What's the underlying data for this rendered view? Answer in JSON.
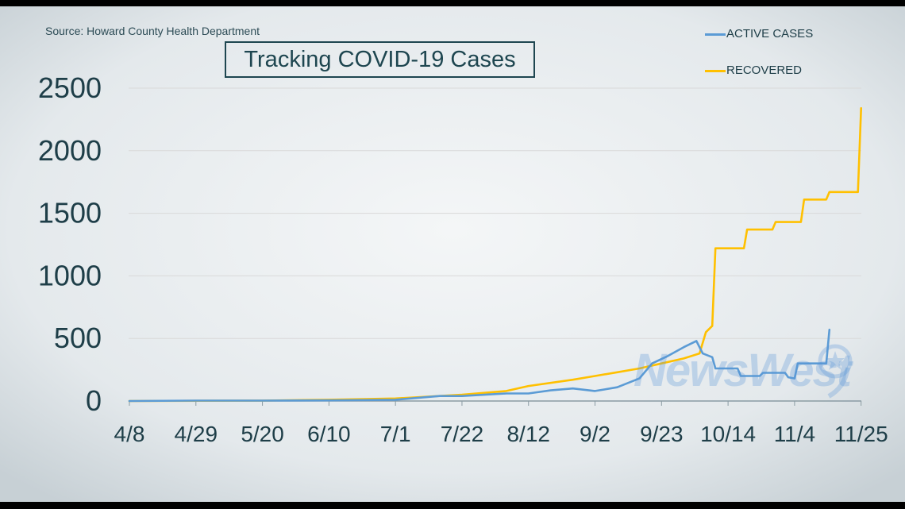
{
  "source": "Source: Howard County Health Department",
  "title": "Tracking COVID-19 Cases",
  "watermark": "NewsWest",
  "colors": {
    "active": "#5b9bd5",
    "recovered": "#ffc000",
    "axis_text": "#1e3e48",
    "grid": "#d9d9d9"
  },
  "chart_data": {
    "type": "line",
    "title": "Tracking COVID-19 Cases",
    "xlabel": "",
    "ylabel": "",
    "ylim": [
      0,
      2500
    ],
    "yticks": [
      0,
      500,
      1000,
      1500,
      2000,
      2500
    ],
    "xticks": [
      "4/8",
      "4/29",
      "5/20",
      "6/10",
      "7/1",
      "7/22",
      "8/12",
      "9/2",
      "9/23",
      "10/14",
      "11/4",
      "11/25"
    ],
    "grid": "horizontal",
    "legend_position": "top-right",
    "series": [
      {
        "name": "ACTIVE CASES",
        "color": "#5b9bd5",
        "points": [
          [
            "4/8",
            0
          ],
          [
            "4/29",
            3
          ],
          [
            "5/20",
            3
          ],
          [
            "6/10",
            5
          ],
          [
            "7/1",
            10
          ],
          [
            "7/15",
            40
          ],
          [
            "7/22",
            40
          ],
          [
            "8/5",
            60
          ],
          [
            "8/12",
            60
          ],
          [
            "8/19",
            85
          ],
          [
            "8/26",
            100
          ],
          [
            "9/2",
            80
          ],
          [
            "9/9",
            110
          ],
          [
            "9/16",
            180
          ],
          [
            "9/20",
            300
          ],
          [
            "9/25",
            360
          ],
          [
            "9/30",
            430
          ],
          [
            "10/4",
            480
          ],
          [
            "10/6",
            380
          ],
          [
            "10/9",
            350
          ],
          [
            "10/10",
            260
          ],
          [
            "10/17",
            260
          ],
          [
            "10/18",
            200
          ],
          [
            "10/24",
            200
          ],
          [
            "10/25",
            225
          ],
          [
            "11/1",
            225
          ],
          [
            "11/2",
            190
          ],
          [
            "11/4",
            180
          ],
          [
            "11/5",
            300
          ],
          [
            "11/14",
            300
          ],
          [
            "11/15",
            570
          ]
        ]
      },
      {
        "name": "RECOVERED",
        "color": "#ffc000",
        "points": [
          [
            "4/8",
            0
          ],
          [
            "5/20",
            3
          ],
          [
            "6/10",
            10
          ],
          [
            "7/1",
            20
          ],
          [
            "7/22",
            50
          ],
          [
            "8/5",
            80
          ],
          [
            "8/12",
            120
          ],
          [
            "8/26",
            170
          ],
          [
            "9/2",
            200
          ],
          [
            "9/9",
            230
          ],
          [
            "9/16",
            260
          ],
          [
            "9/23",
            300
          ],
          [
            "9/30",
            340
          ],
          [
            "10/5",
            380
          ],
          [
            "10/7",
            550
          ],
          [
            "10/9",
            600
          ],
          [
            "10/10",
            1220
          ],
          [
            "10/19",
            1220
          ],
          [
            "10/20",
            1370
          ],
          [
            "10/28",
            1370
          ],
          [
            "10/29",
            1430
          ],
          [
            "11/6",
            1430
          ],
          [
            "11/7",
            1610
          ],
          [
            "11/14",
            1610
          ],
          [
            "11/15",
            1670
          ],
          [
            "11/24",
            1670
          ],
          [
            "11/25",
            2340
          ]
        ]
      }
    ]
  }
}
